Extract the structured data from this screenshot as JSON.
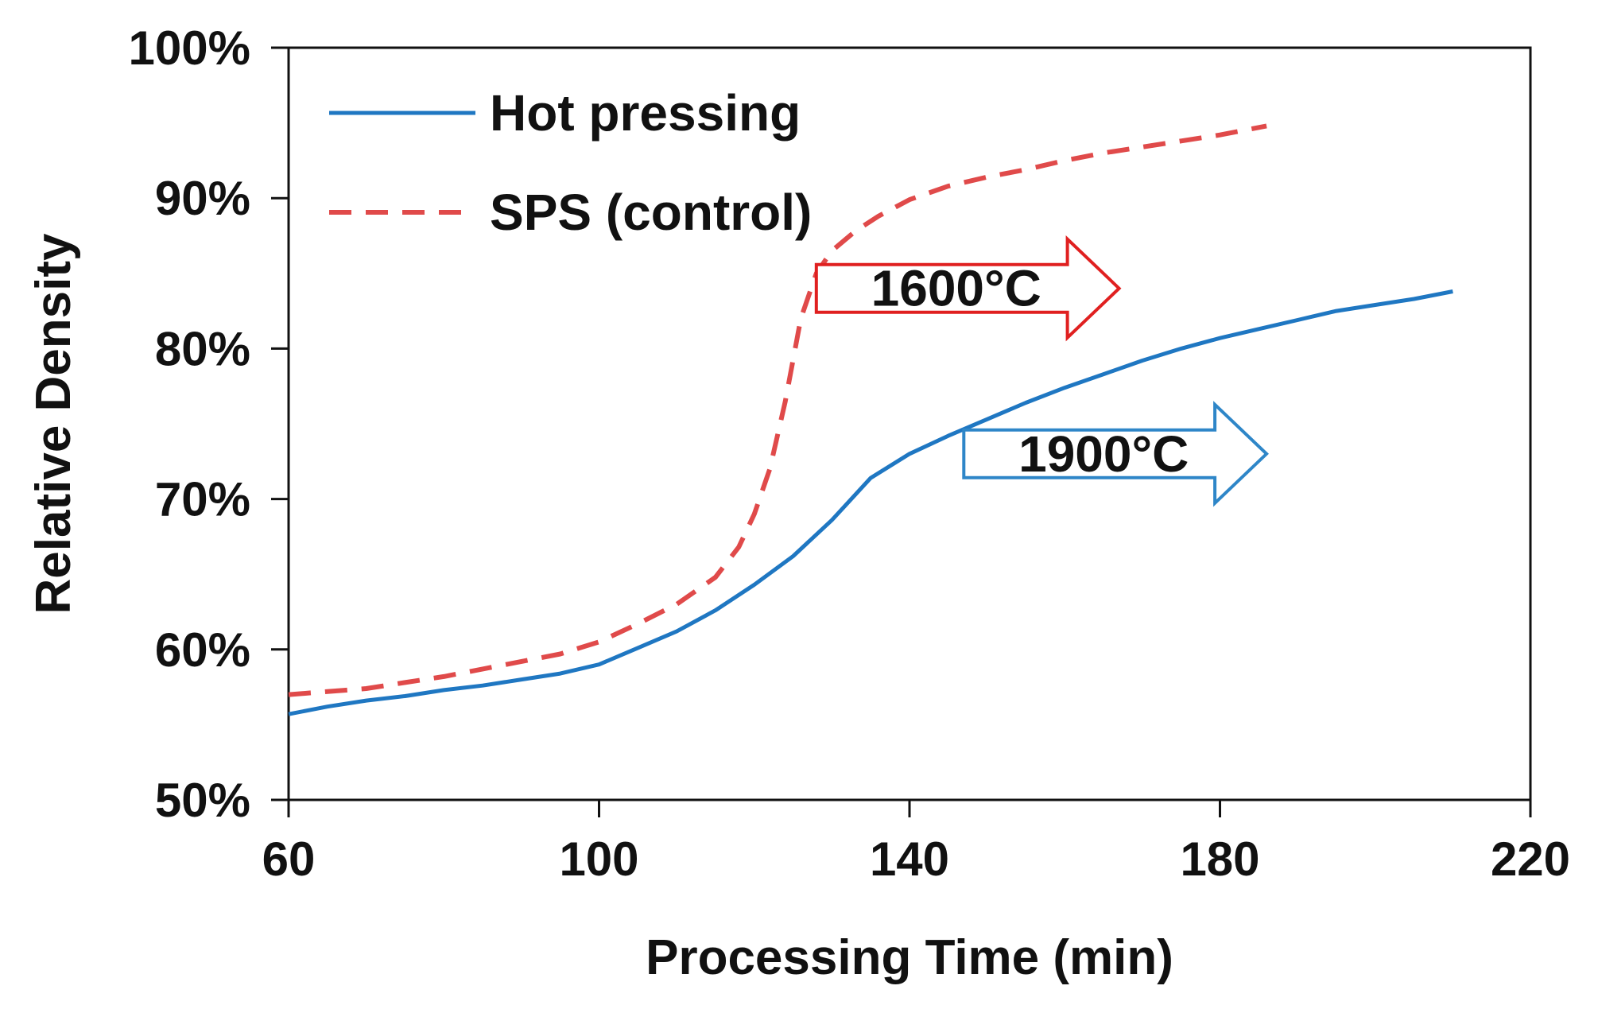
{
  "chart_data": {
    "type": "line",
    "title": "",
    "xlabel": "Processing Time (min)",
    "ylabel": "Relative Density",
    "xlim": [
      60,
      220
    ],
    "ylim": [
      0.5,
      1.0
    ],
    "xticks": [
      60,
      100,
      140,
      180,
      220
    ],
    "xtick_labels": [
      "60",
      "100",
      "140",
      "180",
      "220"
    ],
    "yticks": [
      0.5,
      0.6,
      0.7,
      0.8,
      0.9,
      1.0
    ],
    "ytick_labels": [
      "50%",
      "60%",
      "70%",
      "80%",
      "90%",
      "100%"
    ],
    "grid": false,
    "legend_position": "top-left",
    "series": [
      {
        "name": "Hot pressing",
        "style": "solid",
        "color": "#1f77c2",
        "x": [
          60,
          65,
          70,
          75,
          80,
          85,
          90,
          95,
          100,
          105,
          110,
          115,
          120,
          125,
          130,
          135,
          140,
          145,
          150,
          155,
          160,
          165,
          170,
          175,
          180,
          185,
          190,
          195,
          200,
          205,
          210
        ],
        "y": [
          0.557,
          0.562,
          0.566,
          0.569,
          0.573,
          0.576,
          0.58,
          0.584,
          0.59,
          0.601,
          0.612,
          0.626,
          0.643,
          0.662,
          0.686,
          0.714,
          0.73,
          0.742,
          0.753,
          0.764,
          0.774,
          0.783,
          0.792,
          0.8,
          0.807,
          0.813,
          0.819,
          0.825,
          0.829,
          0.833,
          0.838
        ]
      },
      {
        "name": "SPS (control)",
        "style": "dashed",
        "color": "#e04a4a",
        "x": [
          60,
          65,
          70,
          75,
          80,
          85,
          90,
          95,
          100,
          105,
          110,
          115,
          118,
          120,
          122,
          124,
          126,
          128,
          130,
          133,
          136,
          140,
          145,
          150,
          155,
          160,
          165,
          170,
          175,
          180,
          186
        ],
        "y": [
          0.57,
          0.572,
          0.574,
          0.578,
          0.582,
          0.587,
          0.592,
          0.597,
          0.605,
          0.617,
          0.63,
          0.648,
          0.668,
          0.69,
          0.72,
          0.765,
          0.82,
          0.85,
          0.865,
          0.878,
          0.888,
          0.899,
          0.908,
          0.914,
          0.919,
          0.925,
          0.93,
          0.934,
          0.938,
          0.942,
          0.948
        ]
      }
    ],
    "annotations": [
      {
        "text": "1600°C",
        "x_start": 128,
        "x_end": 167,
        "y": 0.84,
        "color": "#e02020"
      },
      {
        "text": "1900°C",
        "x_start": 147,
        "x_end": 186,
        "y": 0.73,
        "color": "#2e86c8"
      }
    ]
  }
}
